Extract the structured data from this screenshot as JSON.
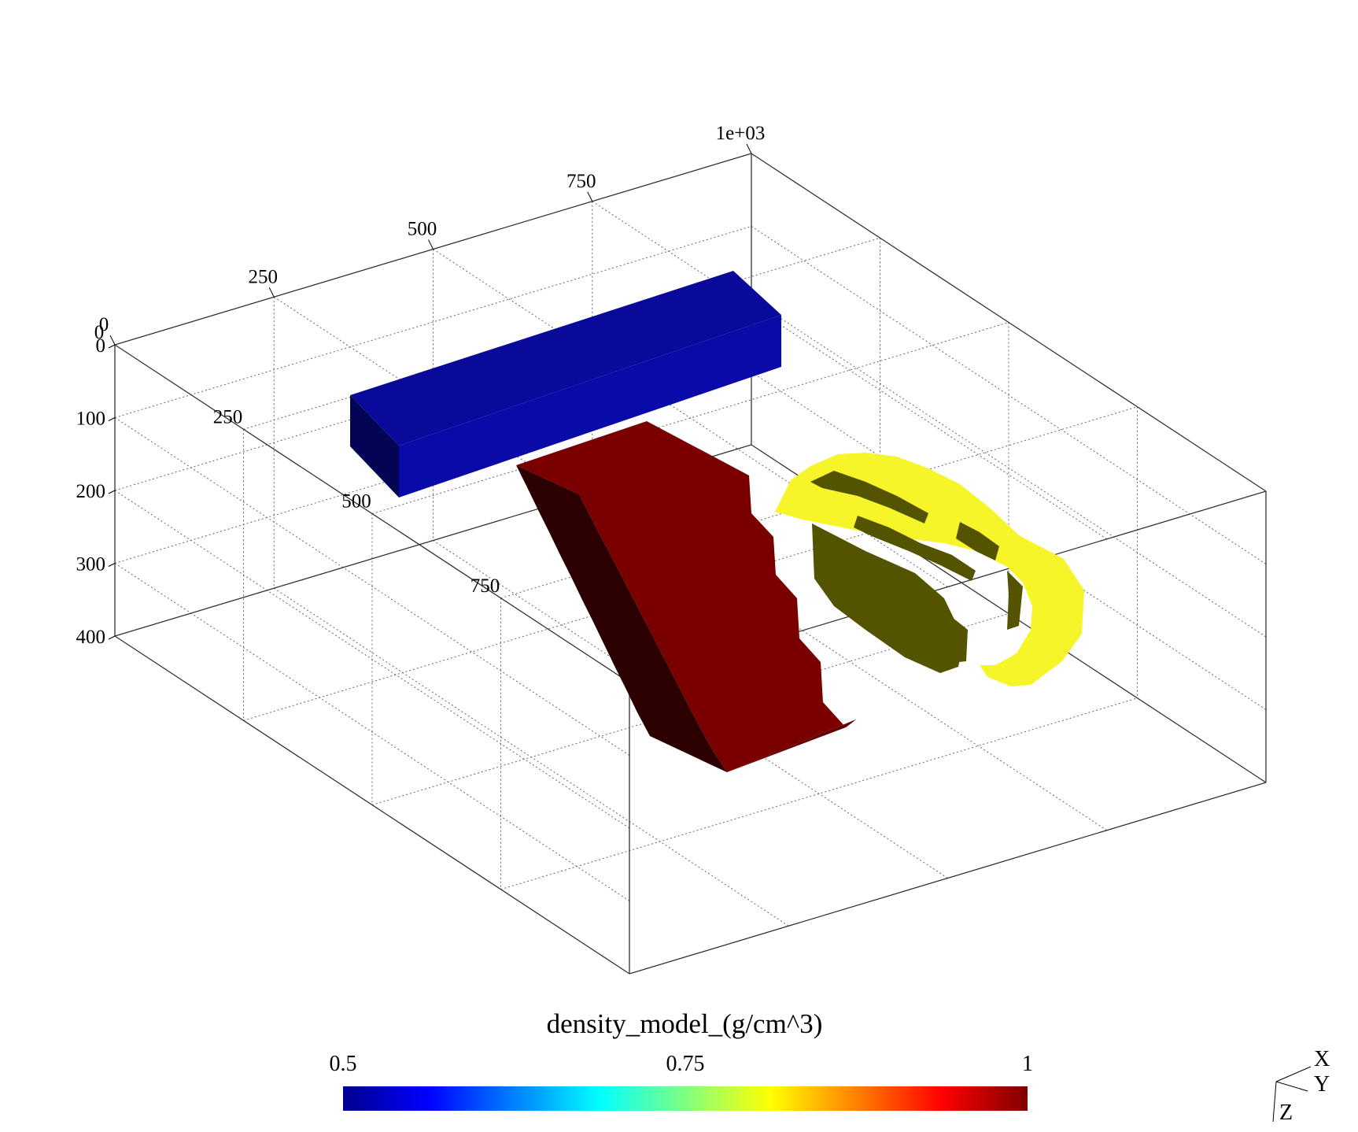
{
  "chart_data": {
    "type": "3d-voxel",
    "axes": {
      "x": {
        "ticks": [
          "0",
          "250",
          "500",
          "750",
          "1e+03"
        ],
        "range": [
          0,
          1000
        ]
      },
      "y": {
        "ticks": [
          "0",
          "250",
          "500",
          "750"
        ],
        "range": [
          0,
          1000
        ]
      },
      "z": {
        "ticks": [
          "0",
          "100",
          "200",
          "300",
          "400"
        ],
        "range": [
          0,
          400
        ]
      }
    },
    "grid": true,
    "bodies": [
      {
        "shape": "rectangular prism",
        "color": "#0a0aa8",
        "density": 0.5
      },
      {
        "shape": "dipping stepped slab",
        "color": "#7a0000",
        "density": 1
      },
      {
        "shape": "voxelized ellipsoid",
        "color": "#f5f52a",
        "density": 0.8
      }
    ],
    "colorbar": {
      "title": "density_model_(g/cm^3)",
      "ticks": [
        "0.5",
        "0.75",
        "1"
      ],
      "range": [
        0.5,
        1
      ],
      "colormap": [
        "#00008f",
        "#0000ff",
        "#0080ff",
        "#00ffff",
        "#80ff80",
        "#ffff00",
        "#ff8000",
        "#ff0000",
        "#800000"
      ],
      "position": "bottom"
    },
    "orientation_axes": [
      "X",
      "Y",
      "Z"
    ]
  }
}
